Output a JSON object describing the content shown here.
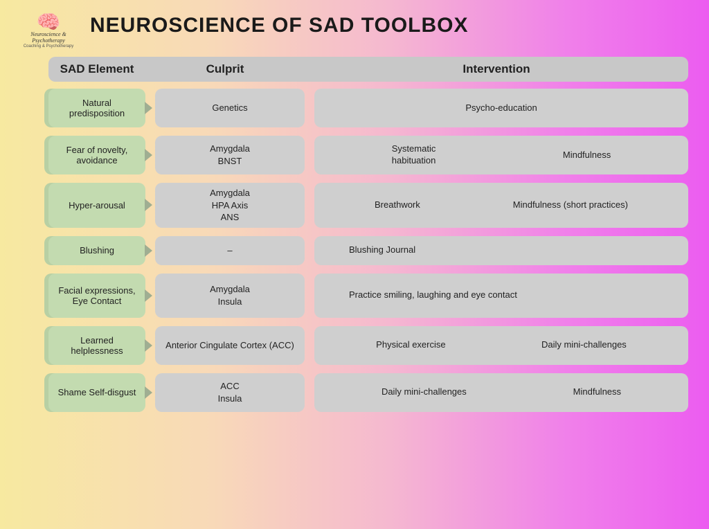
{
  "logo": {
    "name": "Neuroscience & Psychotherapy",
    "tagline": "Coaching & Psychotherapy"
  },
  "title": "NEUROSCIENCE OF SAD TOOLBOX",
  "columns": {
    "element": "SAD Element",
    "culprit": "Culprit",
    "intervention": "Intervention"
  },
  "rows": [
    {
      "element": "Natural predisposition",
      "culprit": [
        "Genetics"
      ],
      "interventions": [
        "Psycho-education"
      ],
      "iv_layout": "single",
      "height": "row-h"
    },
    {
      "element": "Fear of novelty, avoidance",
      "culprit": [
        "Amygdala",
        "BNST"
      ],
      "interventions": [
        "Systematic habituation",
        "Mindfulness"
      ],
      "iv_layout": "two",
      "height": "row-h"
    },
    {
      "element": "Hyper-arousal",
      "culprit": [
        "Amygdala",
        "HPA Axis",
        "ANS"
      ],
      "interventions": [
        "Breathwork",
        "Mindfulness (short practices)"
      ],
      "iv_layout": "two",
      "height": "row-h3"
    },
    {
      "element": "Blushing",
      "culprit": [
        "–"
      ],
      "interventions": [
        "Blushing Journal"
      ],
      "iv_layout": "left",
      "height": "row-hs"
    },
    {
      "element": "Facial expressions, Eye Contact",
      "culprit": [
        "Amygdala",
        "Insula"
      ],
      "interventions": [
        "Practice smiling, laughing and eye contact"
      ],
      "iv_layout": "left",
      "height": "row-h3"
    },
    {
      "element": "Learned helplessness",
      "culprit": [
        "Anterior Cingulate Cortex (ACC)"
      ],
      "interventions": [
        "Physical exercise",
        "Daily mini-challenges"
      ],
      "iv_layout": "two",
      "height": "row-h"
    },
    {
      "element": "Shame Self-disgust",
      "culprit": [
        "ACC",
        "Insula"
      ],
      "interventions": [
        "Daily mini-challenges",
        "Mindfulness"
      ],
      "iv_layout": "two",
      "height": "row-h"
    }
  ],
  "styles": {
    "bg_gradient": [
      "#f7e9a0",
      "#f8d9b8",
      "#f5b8d0",
      "#f080ea",
      "#ec5cf0"
    ],
    "header_bg": "#c8c8c8",
    "cell_bg": "#cfcfcf",
    "element_bg": "#c3dbb0",
    "element_shadow": "#b8d0a4",
    "arrow_color": "#9fae92",
    "border_radius": 10,
    "title_fontsize": 30,
    "header_fontsize": 17,
    "body_fontsize": 13
  }
}
